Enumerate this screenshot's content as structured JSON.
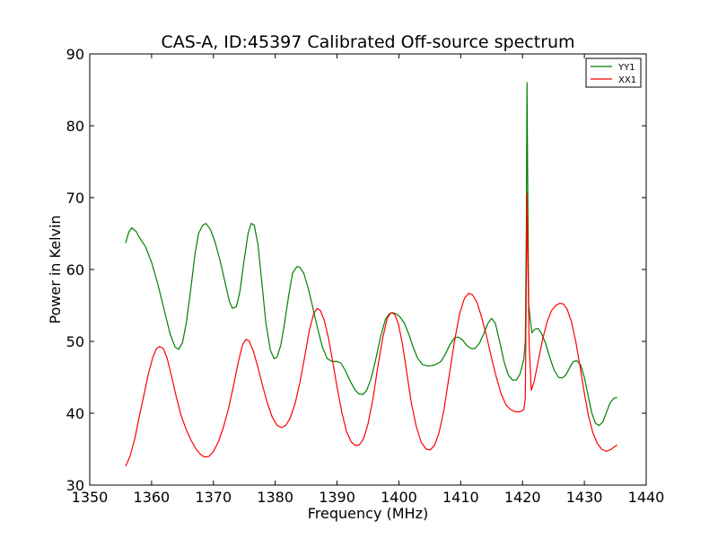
{
  "chart_data": {
    "type": "line",
    "title": "CAS-A, ID:45397 Calibrated Off-source spectrum",
    "xlabel": "Frequency (MHz)",
    "ylabel": "Power in Kelvin",
    "xlim": [
      1350,
      1440
    ],
    "ylim": [
      30,
      90
    ],
    "xticks": [
      1350,
      1360,
      1370,
      1380,
      1390,
      1400,
      1410,
      1420,
      1430,
      1440
    ],
    "yticks": [
      30,
      40,
      50,
      60,
      70,
      80,
      90
    ],
    "grid": false,
    "legend_position": "top-right",
    "series": [
      {
        "name": "YY1",
        "color": "#008000",
        "points": [
          [
            1355.8,
            63.7
          ],
          [
            1356.3,
            65.2
          ],
          [
            1356.8,
            65.8
          ],
          [
            1357.5,
            65.3
          ],
          [
            1358.0,
            64.5
          ],
          [
            1359.0,
            63.2
          ],
          [
            1360.0,
            61.0
          ],
          [
            1361.0,
            58.0
          ],
          [
            1362.0,
            54.5
          ],
          [
            1363.0,
            51.0
          ],
          [
            1363.8,
            49.2
          ],
          [
            1364.4,
            48.9
          ],
          [
            1365.0,
            49.8
          ],
          [
            1365.6,
            52.5
          ],
          [
            1366.3,
            57.0
          ],
          [
            1367.0,
            62.0
          ],
          [
            1367.6,
            65.0
          ],
          [
            1368.3,
            66.2
          ],
          [
            1368.8,
            66.4
          ],
          [
            1369.5,
            65.6
          ],
          [
            1370.2,
            64.0
          ],
          [
            1371.0,
            61.5
          ],
          [
            1371.8,
            58.5
          ],
          [
            1372.6,
            55.5
          ],
          [
            1373.1,
            54.6
          ],
          [
            1373.7,
            54.8
          ],
          [
            1374.3,
            57.0
          ],
          [
            1375.0,
            61.5
          ],
          [
            1375.6,
            65.0
          ],
          [
            1376.1,
            66.4
          ],
          [
            1376.6,
            66.2
          ],
          [
            1377.2,
            63.5
          ],
          [
            1377.8,
            58.5
          ],
          [
            1378.5,
            52.5
          ],
          [
            1379.2,
            48.8
          ],
          [
            1379.8,
            47.6
          ],
          [
            1380.3,
            47.8
          ],
          [
            1380.9,
            49.5
          ],
          [
            1381.5,
            52.5
          ],
          [
            1382.2,
            56.5
          ],
          [
            1382.8,
            59.5
          ],
          [
            1383.5,
            60.4
          ],
          [
            1384.0,
            60.3
          ],
          [
            1384.6,
            59.5
          ],
          [
            1385.3,
            57.5
          ],
          [
            1386.0,
            55.0
          ],
          [
            1386.8,
            52.0
          ],
          [
            1387.6,
            49.3
          ],
          [
            1388.4,
            47.6
          ],
          [
            1389.2,
            47.2
          ],
          [
            1390.0,
            47.2
          ],
          [
            1390.6,
            47.0
          ],
          [
            1391.3,
            46.0
          ],
          [
            1392.0,
            44.7
          ],
          [
            1392.8,
            43.4
          ],
          [
            1393.5,
            42.7
          ],
          [
            1394.2,
            42.6
          ],
          [
            1394.8,
            43.2
          ],
          [
            1395.5,
            44.8
          ],
          [
            1396.2,
            47.3
          ],
          [
            1397.0,
            50.5
          ],
          [
            1397.8,
            53.0
          ],
          [
            1398.4,
            53.8
          ],
          [
            1399.0,
            54.0
          ],
          [
            1399.6,
            53.8
          ],
          [
            1400.2,
            53.4
          ],
          [
            1400.9,
            52.5
          ],
          [
            1401.6,
            51.0
          ],
          [
            1402.3,
            49.2
          ],
          [
            1403.0,
            47.7
          ],
          [
            1403.8,
            46.8
          ],
          [
            1404.5,
            46.6
          ],
          [
            1405.3,
            46.6
          ],
          [
            1406.0,
            46.8
          ],
          [
            1406.8,
            47.2
          ],
          [
            1407.5,
            48.2
          ],
          [
            1408.3,
            49.6
          ],
          [
            1409.0,
            50.5
          ],
          [
            1409.6,
            50.6
          ],
          [
            1410.3,
            50.2
          ],
          [
            1411.0,
            49.4
          ],
          [
            1411.7,
            49.0
          ],
          [
            1412.3,
            49.0
          ],
          [
            1413.0,
            49.7
          ],
          [
            1413.7,
            51.0
          ],
          [
            1414.4,
            52.5
          ],
          [
            1415.0,
            53.2
          ],
          [
            1415.6,
            52.5
          ],
          [
            1416.3,
            50.0
          ],
          [
            1417.0,
            47.2
          ],
          [
            1417.7,
            45.3
          ],
          [
            1418.4,
            44.6
          ],
          [
            1419.0,
            44.6
          ],
          [
            1419.6,
            45.5
          ],
          [
            1420.2,
            47.5
          ],
          [
            1420.45,
            50.0
          ],
          [
            1420.6,
            65.0
          ],
          [
            1420.72,
            86.0
          ],
          [
            1420.85,
            70.0
          ],
          [
            1421.0,
            55.0
          ],
          [
            1421.5,
            51.2
          ],
          [
            1422.0,
            51.7
          ],
          [
            1422.5,
            51.8
          ],
          [
            1423.0,
            51.2
          ],
          [
            1423.7,
            49.8
          ],
          [
            1424.4,
            47.8
          ],
          [
            1425.1,
            46.0
          ],
          [
            1425.8,
            45.0
          ],
          [
            1426.4,
            44.9
          ],
          [
            1427.0,
            45.3
          ],
          [
            1427.6,
            46.3
          ],
          [
            1428.2,
            47.2
          ],
          [
            1428.8,
            47.3
          ],
          [
            1429.4,
            46.7
          ],
          [
            1430.0,
            45.0
          ],
          [
            1430.6,
            42.5
          ],
          [
            1431.2,
            40.0
          ],
          [
            1431.8,
            38.6
          ],
          [
            1432.4,
            38.3
          ],
          [
            1433.0,
            38.8
          ],
          [
            1433.6,
            40.2
          ],
          [
            1434.2,
            41.5
          ],
          [
            1434.8,
            42.1
          ],
          [
            1435.3,
            42.2
          ]
        ]
      },
      {
        "name": "XX1",
        "color": "#ff0000",
        "points": [
          [
            1355.8,
            32.6
          ],
          [
            1356.5,
            34.0
          ],
          [
            1357.3,
            36.5
          ],
          [
            1358.0,
            39.5
          ],
          [
            1358.8,
            42.7
          ],
          [
            1359.5,
            45.5
          ],
          [
            1360.2,
            47.8
          ],
          [
            1360.8,
            49.0
          ],
          [
            1361.3,
            49.3
          ],
          [
            1361.9,
            49.0
          ],
          [
            1362.5,
            47.7
          ],
          [
            1363.2,
            45.3
          ],
          [
            1364.0,
            42.3
          ],
          [
            1364.8,
            39.6
          ],
          [
            1365.6,
            37.7
          ],
          [
            1366.4,
            36.2
          ],
          [
            1367.2,
            35.0
          ],
          [
            1368.0,
            34.2
          ],
          [
            1368.6,
            33.9
          ],
          [
            1369.3,
            34.0
          ],
          [
            1370.0,
            34.7
          ],
          [
            1370.8,
            36.0
          ],
          [
            1371.6,
            38.0
          ],
          [
            1372.4,
            40.5
          ],
          [
            1373.2,
            43.6
          ],
          [
            1374.0,
            47.0
          ],
          [
            1374.7,
            49.5
          ],
          [
            1375.3,
            50.3
          ],
          [
            1375.8,
            50.0
          ],
          [
            1376.4,
            48.8
          ],
          [
            1377.1,
            46.7
          ],
          [
            1377.9,
            44.0
          ],
          [
            1378.7,
            41.5
          ],
          [
            1379.5,
            39.5
          ],
          [
            1380.3,
            38.3
          ],
          [
            1381.0,
            38.0
          ],
          [
            1381.7,
            38.3
          ],
          [
            1382.4,
            39.3
          ],
          [
            1383.2,
            41.3
          ],
          [
            1384.0,
            44.3
          ],
          [
            1384.8,
            48.0
          ],
          [
            1385.5,
            51.5
          ],
          [
            1386.2,
            53.8
          ],
          [
            1386.8,
            54.6
          ],
          [
            1387.3,
            54.3
          ],
          [
            1387.9,
            53.0
          ],
          [
            1388.6,
            50.5
          ],
          [
            1389.3,
            47.2
          ],
          [
            1390.0,
            43.6
          ],
          [
            1390.8,
            40.0
          ],
          [
            1391.5,
            37.5
          ],
          [
            1392.3,
            36.0
          ],
          [
            1393.0,
            35.5
          ],
          [
            1393.6,
            35.6
          ],
          [
            1394.3,
            36.5
          ],
          [
            1395.0,
            38.5
          ],
          [
            1395.8,
            42.0
          ],
          [
            1396.6,
            46.5
          ],
          [
            1397.4,
            50.5
          ],
          [
            1398.1,
            53.2
          ],
          [
            1398.7,
            54.0
          ],
          [
            1399.3,
            53.8
          ],
          [
            1399.9,
            52.5
          ],
          [
            1400.6,
            49.5
          ],
          [
            1401.3,
            45.5
          ],
          [
            1402.0,
            41.5
          ],
          [
            1402.8,
            38.2
          ],
          [
            1403.6,
            36.0
          ],
          [
            1404.4,
            35.0
          ],
          [
            1405.1,
            34.9
          ],
          [
            1405.8,
            35.6
          ],
          [
            1406.5,
            37.3
          ],
          [
            1407.3,
            40.5
          ],
          [
            1408.1,
            45.0
          ],
          [
            1409.0,
            50.0
          ],
          [
            1409.8,
            53.8
          ],
          [
            1410.6,
            56.0
          ],
          [
            1411.3,
            56.7
          ],
          [
            1411.9,
            56.5
          ],
          [
            1412.6,
            55.5
          ],
          [
            1413.3,
            53.6
          ],
          [
            1414.1,
            51.0
          ],
          [
            1414.9,
            48.0
          ],
          [
            1415.7,
            45.2
          ],
          [
            1416.5,
            42.8
          ],
          [
            1417.3,
            41.2
          ],
          [
            1418.1,
            40.5
          ],
          [
            1418.9,
            40.2
          ],
          [
            1419.6,
            40.2
          ],
          [
            1420.2,
            40.5
          ],
          [
            1420.45,
            42.0
          ],
          [
            1420.6,
            58.0
          ],
          [
            1420.72,
            70.6
          ],
          [
            1420.85,
            62.0
          ],
          [
            1421.05,
            50.0
          ],
          [
            1421.4,
            43.2
          ],
          [
            1421.9,
            44.5
          ],
          [
            1422.6,
            47.5
          ],
          [
            1423.3,
            50.5
          ],
          [
            1424.0,
            52.8
          ],
          [
            1424.7,
            54.3
          ],
          [
            1425.4,
            55.0
          ],
          [
            1426.0,
            55.3
          ],
          [
            1426.6,
            55.2
          ],
          [
            1427.2,
            54.5
          ],
          [
            1427.9,
            52.8
          ],
          [
            1428.6,
            50.0
          ],
          [
            1429.3,
            46.5
          ],
          [
            1430.0,
            42.8
          ],
          [
            1430.7,
            39.5
          ],
          [
            1431.4,
            37.2
          ],
          [
            1432.1,
            35.8
          ],
          [
            1432.8,
            35.0
          ],
          [
            1433.5,
            34.7
          ],
          [
            1434.2,
            34.9
          ],
          [
            1434.8,
            35.3
          ],
          [
            1435.3,
            35.6
          ]
        ]
      }
    ]
  }
}
